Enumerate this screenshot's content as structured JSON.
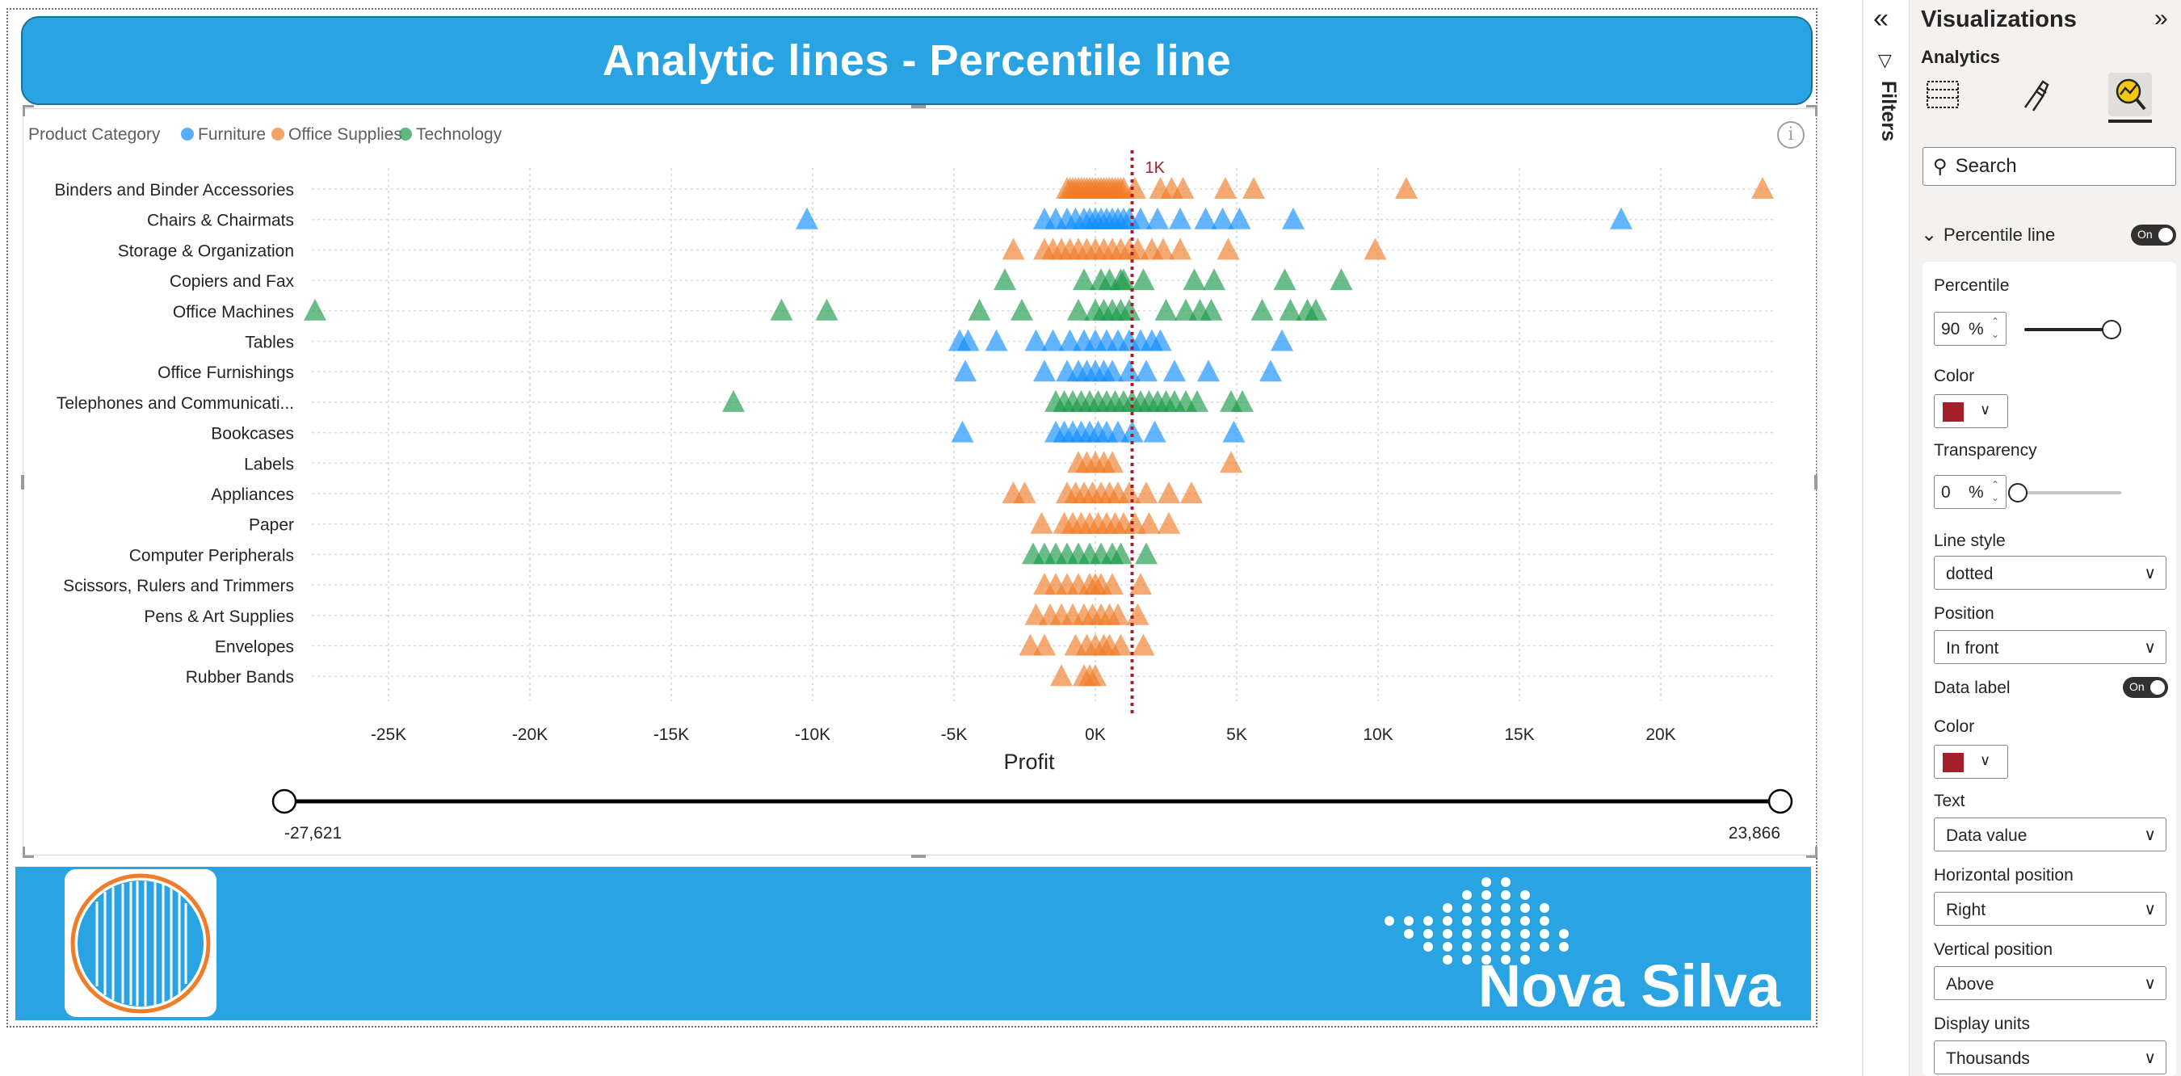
{
  "report": {
    "title": "Analytic lines - Percentile line",
    "legend_title": "Product Category",
    "slider_min_label": "-27,621",
    "slider_max_label": "23,866",
    "brand_name": "Nova Silva"
  },
  "chart_data": {
    "type": "scatter",
    "marker": "triangle",
    "xlabel": "Profit",
    "ylabel": "",
    "xlim": [
      -27621,
      23866
    ],
    "x_ticks": [
      "-25K",
      "-20K",
      "-15K",
      "-10K",
      "-5K",
      "0K",
      "5K",
      "10K",
      "15K",
      "20K"
    ],
    "x_tick_values": [
      -25000,
      -20000,
      -15000,
      -10000,
      -5000,
      0,
      5000,
      10000,
      15000,
      20000
    ],
    "grid": true,
    "legend_position": "top-left",
    "categories": [
      "Binders and Binder Accessories",
      "Chairs & Chairmats",
      "Storage & Organization",
      "Copiers and Fax",
      "Office Machines",
      "Tables",
      "Office Furnishings",
      "Telephones and Communicati...",
      "Bookcases",
      "Labels",
      "Appliances",
      "Paper",
      "Computer Peripherals",
      "Scissors, Rulers and Trimmers",
      "Pens & Art Supplies",
      "Envelopes",
      "Rubber Bands"
    ],
    "series": [
      {
        "name": "Furniture",
        "color": "#118dff"
      },
      {
        "name": "Office Supplies",
        "color": "#f07c2a"
      },
      {
        "name": "Technology",
        "color": "#1a9a48"
      }
    ],
    "points": [
      {
        "category": "Binders and Binder Accessories",
        "series": "Office Supplies",
        "x": [
          -1000,
          -900,
          -800,
          -700,
          -600,
          -500,
          -400,
          -300,
          -200,
          -100,
          0,
          100,
          200,
          300,
          400,
          500,
          600,
          700,
          800,
          900,
          1000,
          1400,
          2300,
          2700,
          3100,
          4600,
          5600,
          11000,
          23600
        ]
      },
      {
        "category": "Chairs & Chairmats",
        "series": "Furniture",
        "x": [
          -10200,
          -1800,
          -1400,
          -1000,
          -700,
          -400,
          -200,
          0,
          200,
          400,
          600,
          800,
          1000,
          1200,
          1600,
          2200,
          3000,
          3900,
          4500,
          5100,
          7000,
          18600
        ]
      },
      {
        "category": "Storage & Organization",
        "series": "Office Supplies",
        "x": [
          -2900,
          -1800,
          -1500,
          -1200,
          -900,
          -600,
          -300,
          0,
          300,
          600,
          900,
          1200,
          1500,
          2000,
          2400,
          3000,
          4700,
          9900
        ]
      },
      {
        "category": "Copiers and Fax",
        "series": "Technology",
        "x": [
          -3200,
          -400,
          200,
          500,
          900,
          1000,
          1700,
          3500,
          4200,
          6700,
          8700
        ]
      },
      {
        "category": "Office Machines",
        "series": "Technology",
        "x": [
          -27600,
          -11100,
          -9500,
          -4100,
          -2600,
          -600,
          0,
          300,
          600,
          900,
          1200,
          2500,
          3200,
          3700,
          4100,
          5900,
          6900,
          7500,
          7800
        ]
      },
      {
        "category": "Tables",
        "series": "Furniture",
        "x": [
          -4800,
          -4500,
          -3500,
          -2100,
          -1500,
          -900,
          -400,
          0,
          400,
          800,
          1200,
          1600,
          2000,
          2300,
          6600
        ]
      },
      {
        "category": "Office Furnishings",
        "series": "Furniture",
        "x": [
          -4600,
          -1800,
          -1000,
          -600,
          -300,
          0,
          300,
          600,
          1200,
          1800,
          2800,
          4000,
          6200
        ]
      },
      {
        "category": "Telephones and Communicati...",
        "series": "Technology",
        "x": [
          -12800,
          -1400,
          -1100,
          -800,
          -500,
          -200,
          100,
          400,
          700,
          1000,
          1300,
          1600,
          1900,
          2200,
          2500,
          2800,
          3200,
          3600,
          4800,
          5200
        ]
      },
      {
        "category": "Bookcases",
        "series": "Furniture",
        "x": [
          -4700,
          -1400,
          -1100,
          -800,
          -500,
          -200,
          100,
          400,
          800,
          1300,
          2100,
          4900
        ]
      },
      {
        "category": "Labels",
        "series": "Office Supplies",
        "x": [
          -600,
          -300,
          0,
          300,
          600,
          4800
        ]
      },
      {
        "category": "Appliances",
        "series": "Office Supplies",
        "x": [
          -2900,
          -2500,
          -1000,
          -700,
          -400,
          -100,
          200,
          500,
          800,
          1200,
          1800,
          2600,
          3400
        ]
      },
      {
        "category": "Paper",
        "series": "Office Supplies",
        "x": [
          -1900,
          -1100,
          -800,
          -500,
          -200,
          100,
          400,
          700,
          1000,
          1400,
          1900,
          2600
        ]
      },
      {
        "category": "Computer Peripherals",
        "series": "Technology",
        "x": [
          -2200,
          -1800,
          -1400,
          -1000,
          -600,
          -200,
          200,
          600,
          900,
          1800
        ]
      },
      {
        "category": "Scissors, Rulers and Trimmers",
        "series": "Office Supplies",
        "x": [
          -1800,
          -1400,
          -1000,
          -600,
          -200,
          0,
          200,
          600,
          1600
        ]
      },
      {
        "category": "Pens & Art Supplies",
        "series": "Office Supplies",
        "x": [
          -2100,
          -1600,
          -1200,
          -800,
          -400,
          -100,
          200,
          500,
          800,
          1500
        ]
      },
      {
        "category": "Envelopes",
        "series": "Office Supplies",
        "x": [
          -2300,
          -1800,
          -700,
          -300,
          0,
          300,
          500,
          900,
          1700
        ]
      },
      {
        "category": "Rubber Bands",
        "series": "Office Supplies",
        "x": [
          -1200,
          -400,
          -200,
          0
        ]
      }
    ],
    "reference_line": {
      "type": "percentile",
      "percentile": 90,
      "x": 1300,
      "label": "1K",
      "color": "#a3202a",
      "style": "dotted"
    }
  },
  "filters_pane": {
    "label": "Filters"
  },
  "viz_pane": {
    "title": "Visualizations",
    "subtitle": "Analytics",
    "search_placeholder": "Search",
    "section": "Percentile line",
    "section_toggle": "On",
    "percentile_label": "Percentile",
    "percentile_value": "90",
    "percentile_level": 0.9,
    "pct_sign": "%",
    "color_label": "Color",
    "line_color": "#a3202a",
    "transparency_label": "Transparency",
    "transparency_value": "0",
    "transparency_level": 0,
    "line_style_label": "Line style",
    "line_style_value": "dotted",
    "position_label": "Position",
    "position_value": "In front",
    "data_label_label": "Data label",
    "data_label_toggle": "On",
    "data_label_color_label": "Color",
    "data_label_color": "#a3202a",
    "text_label": "Text",
    "text_value": "Data value",
    "hpos_label": "Horizontal position",
    "hpos_value": "Right",
    "vpos_label": "Vertical position",
    "vpos_value": "Above",
    "units_label": "Display units",
    "units_value": "Thousands"
  }
}
